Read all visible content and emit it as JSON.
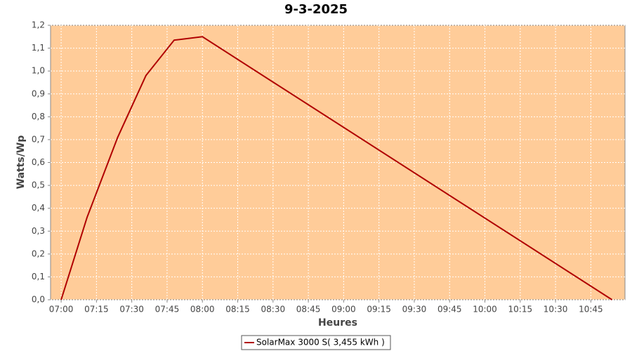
{
  "chart_data": {
    "type": "line",
    "title": "9-3-2025",
    "x_label": "Heures",
    "y_label": "Watts/Wp",
    "x": [
      420,
      431,
      444,
      456,
      468,
      480,
      652.5,
      654
    ],
    "series": [
      {
        "name": "SolarMax 3000 S( 3,455 kWh )",
        "color": "#b00000",
        "values": [
          0,
          0.36,
          0.71,
          0.98,
          1.135,
          1.15,
          0.01,
          0
        ]
      }
    ],
    "xlim": [
      415.5,
      659.5
    ],
    "xticks": [
      {
        "value": 420,
        "label": "07:00"
      },
      {
        "value": 435,
        "label": "07:15"
      },
      {
        "value": 450,
        "label": "07:30"
      },
      {
        "value": 465,
        "label": "07:45"
      },
      {
        "value": 480,
        "label": "08:00"
      },
      {
        "value": 495,
        "label": "08:15"
      },
      {
        "value": 510,
        "label": "08:30"
      },
      {
        "value": 525,
        "label": "08:45"
      },
      {
        "value": 540,
        "label": "09:00"
      },
      {
        "value": 555,
        "label": "09:15"
      },
      {
        "value": 570,
        "label": "09:30"
      },
      {
        "value": 585,
        "label": "09:45"
      },
      {
        "value": 600,
        "label": "10:00"
      },
      {
        "value": 615,
        "label": "10:15"
      },
      {
        "value": 630,
        "label": "10:30"
      },
      {
        "value": 645,
        "label": "10:45"
      }
    ],
    "ylim": [
      0,
      1.2
    ],
    "yticks": [
      {
        "value": 0,
        "label": "0,0"
      },
      {
        "value": 0.1,
        "label": "0,1"
      },
      {
        "value": 0.2,
        "label": "0,2"
      },
      {
        "value": 0.3,
        "label": "0,3"
      },
      {
        "value": 0.4,
        "label": "0,4"
      },
      {
        "value": 0.5,
        "label": "0,5"
      },
      {
        "value": 0.6,
        "label": "0,6"
      },
      {
        "value": 0.7,
        "label": "0,7"
      },
      {
        "value": 0.8,
        "label": "0,8"
      },
      {
        "value": 0.9,
        "label": "0,9"
      },
      {
        "value": 1.0,
        "label": "1,0"
      },
      {
        "value": 1.1,
        "label": "1,1"
      },
      {
        "value": 1.2,
        "label": "1,2"
      }
    ],
    "grid": true,
    "background": "#ffcc99",
    "legend": "bottom"
  }
}
